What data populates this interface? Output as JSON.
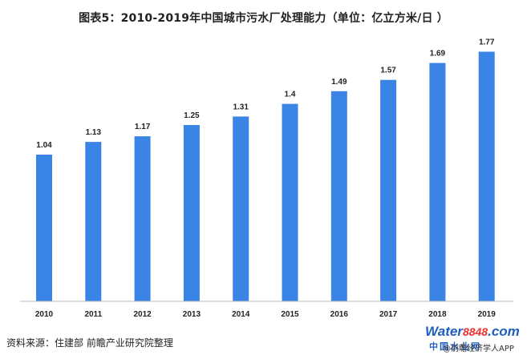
{
  "chart_data": {
    "type": "bar",
    "title": "图表5：2010-2019年中国城市污水厂处理能力（单位：亿立方米/日 ）",
    "xlabel": "",
    "ylabel": "",
    "categories": [
      "2010",
      "2011",
      "2012",
      "2013",
      "2014",
      "2015",
      "2016",
      "2017",
      "2018",
      "2019"
    ],
    "values": [
      1.04,
      1.13,
      1.17,
      1.25,
      1.31,
      1.4,
      1.49,
      1.57,
      1.69,
      1.77
    ],
    "value_labels": [
      "1.04",
      "1.13",
      "1.17",
      "1.25",
      "1.31",
      "1.4",
      "1.49",
      "1.57",
      "1.69",
      "1.77"
    ],
    "ylim": [
      0,
      1.8
    ],
    "grid": false,
    "bar_color": "#3a84e6"
  },
  "footer": {
    "source": "资料来源：住建部 前瞻产业研究院整理",
    "logo_water": "Water",
    "logo_number": "8848",
    "logo_com": ".com",
    "logo_sub": "中国水业网",
    "credit": "@前瞻经济学人APP"
  }
}
